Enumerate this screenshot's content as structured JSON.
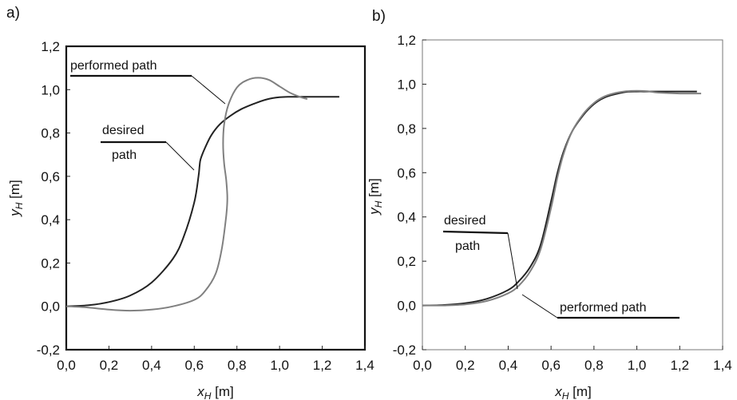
{
  "chart_data": [
    {
      "panel": "a)",
      "type": "line",
      "xlabel": {
        "main": "x",
        "sub": "H",
        "unit": " [m]"
      },
      "ylabel": {
        "main": "y",
        "sub": "H",
        "unit": " [m]"
      },
      "xlim": [
        0,
        1.4
      ],
      "ylim": [
        -0.2,
        1.2
      ],
      "xticks": [
        "0,0",
        "0,2",
        "0,4",
        "0,6",
        "0,8",
        "1,0",
        "1,2",
        "1,4"
      ],
      "yticks": [
        "-0,2",
        "0,0",
        "0,2",
        "0,4",
        "0,6",
        "0,8",
        "1,0",
        "1,2"
      ],
      "grid": false,
      "series": [
        {
          "name": "desired path",
          "color": "#222222",
          "x": [
            0.0,
            0.1,
            0.2,
            0.3,
            0.4,
            0.5,
            0.55,
            0.6,
            0.62,
            0.625,
            0.63,
            0.65,
            0.68,
            0.72,
            0.77,
            0.82,
            0.88,
            0.94,
            1.0,
            1.05,
            1.1,
            1.2,
            1.28
          ],
          "y": [
            0.0,
            0.005,
            0.02,
            0.05,
            0.11,
            0.22,
            0.32,
            0.48,
            0.6,
            0.65,
            0.68,
            0.73,
            0.79,
            0.84,
            0.88,
            0.91,
            0.935,
            0.955,
            0.965,
            0.967,
            0.967,
            0.967,
            0.967
          ]
        },
        {
          "name": "performed path",
          "color": "#808080",
          "x": [
            0.0,
            0.1,
            0.2,
            0.3,
            0.4,
            0.5,
            0.6,
            0.65,
            0.7,
            0.73,
            0.75,
            0.755,
            0.75,
            0.74,
            0.735,
            0.74,
            0.76,
            0.8,
            0.85,
            0.9,
            0.95,
            1.0,
            1.05,
            1.1,
            1.13
          ],
          "y": [
            0.0,
            -0.005,
            -0.015,
            -0.02,
            -0.015,
            0.0,
            0.03,
            0.07,
            0.15,
            0.27,
            0.42,
            0.5,
            0.58,
            0.66,
            0.75,
            0.84,
            0.93,
            1.01,
            1.045,
            1.055,
            1.045,
            1.015,
            0.985,
            0.965,
            0.957
          ]
        }
      ],
      "annotations": [
        {
          "label": "performed path",
          "target_x": 0.75,
          "target_y": 0.96
        },
        {
          "label": "desired",
          "label2": "path",
          "target_x": 0.63,
          "target_y": 0.62
        }
      ]
    },
    {
      "panel": "b)",
      "type": "line",
      "xlabel": {
        "main": "x",
        "sub": "H",
        "unit": " [m]"
      },
      "ylabel": {
        "main": "y",
        "sub": "H",
        "unit": " [m]"
      },
      "xlim": [
        0,
        1.4
      ],
      "ylim": [
        -0.2,
        1.2
      ],
      "xticks": [
        "0,0",
        "0,2",
        "0,4",
        "0,6",
        "0,8",
        "1,0",
        "1,2",
        "1,4"
      ],
      "yticks": [
        "-0,2",
        "0,0",
        "0,2",
        "0,4",
        "0,6",
        "0,8",
        "1,0",
        "1,2"
      ],
      "grid": false,
      "series": [
        {
          "name": "desired path",
          "color": "#222222",
          "x": [
            0.0,
            0.1,
            0.2,
            0.3,
            0.4,
            0.45,
            0.5,
            0.55,
            0.6,
            0.63,
            0.66,
            0.7,
            0.75,
            0.8,
            0.85,
            0.9,
            0.95,
            1.0,
            1.05,
            1.1,
            1.2,
            1.28
          ],
          "y": [
            0.0,
            0.002,
            0.01,
            0.03,
            0.07,
            0.11,
            0.17,
            0.27,
            0.47,
            0.6,
            0.7,
            0.79,
            0.86,
            0.91,
            0.94,
            0.955,
            0.965,
            0.967,
            0.967,
            0.967,
            0.967,
            0.967
          ]
        },
        {
          "name": "performed path",
          "color": "#808080",
          "x": [
            0.0,
            0.1,
            0.2,
            0.3,
            0.4,
            0.45,
            0.5,
            0.55,
            0.6,
            0.63,
            0.66,
            0.7,
            0.75,
            0.8,
            0.85,
            0.9,
            0.95,
            1.0,
            1.05,
            1.1,
            1.2,
            1.3
          ],
          "y": [
            0.0,
            0.0,
            0.005,
            0.02,
            0.055,
            0.09,
            0.15,
            0.25,
            0.44,
            0.58,
            0.69,
            0.79,
            0.865,
            0.915,
            0.945,
            0.96,
            0.968,
            0.97,
            0.968,
            0.962,
            0.958,
            0.958
          ]
        }
      ],
      "annotations": [
        {
          "label": "desired",
          "label2": "path",
          "target_x": 0.47,
          "target_y": 0.08
        },
        {
          "label": "performed path",
          "target_x": 0.49,
          "target_y": 0.06
        }
      ]
    }
  ]
}
